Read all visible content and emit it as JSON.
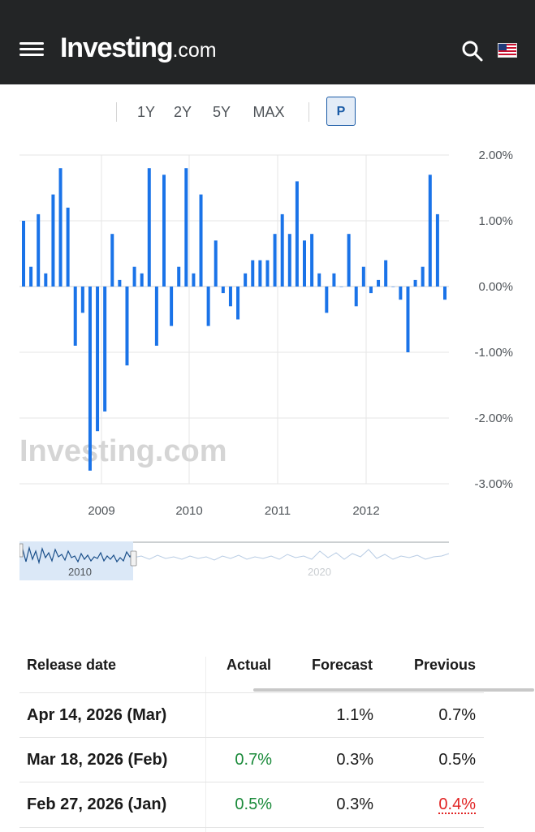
{
  "header": {
    "logo_main": "Investing",
    "logo_domain": ".com",
    "menu_icon": "hamburger-menu-icon",
    "search_icon": "search-icon",
    "flag_icon": "us-flag-icon"
  },
  "range": {
    "buttons": [
      "1Y",
      "2Y",
      "5Y",
      "MAX"
    ],
    "p_label": "P",
    "active": "P"
  },
  "chart_data": {
    "type": "bar",
    "x_tick_labels": [
      "2009",
      "2010",
      "2011",
      "2012"
    ],
    "y_tick_labels": [
      "2.00%",
      "1.00%",
      "0.00%",
      "-1.00%",
      "-2.00%",
      "-3.00%"
    ],
    "ylim": [
      -3,
      2
    ],
    "grid": true,
    "values": [
      1.0,
      0.3,
      1.1,
      0.2,
      1.4,
      1.8,
      1.2,
      -0.9,
      -0.4,
      -2.8,
      -2.2,
      -1.9,
      0.8,
      0.1,
      -1.2,
      0.3,
      0.2,
      1.8,
      -0.9,
      1.7,
      -0.6,
      0.3,
      1.8,
      0.2,
      1.4,
      -0.6,
      0.7,
      -0.1,
      -0.3,
      -0.5,
      0.2,
      0.4,
      0.4,
      0.4,
      0.8,
      1.1,
      0.8,
      1.6,
      0.7,
      0.8,
      0.2,
      -0.4,
      0.2,
      0.0,
      0.8,
      -0.3,
      0.3,
      -0.1,
      0.1,
      0.4,
      0.0,
      -0.2,
      -1.0,
      0.1,
      0.3,
      1.7,
      1.1,
      -0.2
    ],
    "bar_color": "#1a73e8",
    "watermark": "Investing.com"
  },
  "navigator": {
    "labels": [
      "2010",
      "2020"
    ]
  },
  "table": {
    "headers": {
      "release_date": "Release date",
      "actual": "Actual",
      "forecast": "Forecast",
      "previous": "Previous"
    },
    "rows": [
      {
        "date": "Apr 14, 2026 (Mar)",
        "actual": "",
        "forecast": "1.1%",
        "previous": "0.7%"
      },
      {
        "date": "Mar 18, 2026 (Feb)",
        "actual": "0.7%",
        "forecast": "0.3%",
        "previous": "0.5%"
      },
      {
        "date": "Feb 27, 2026 (Jan)",
        "actual": "0.5%",
        "forecast": "0.3%",
        "previous": "0.4%"
      }
    ],
    "colors": {
      "positive": "#1a8a3a",
      "negative": "#e12323"
    }
  }
}
